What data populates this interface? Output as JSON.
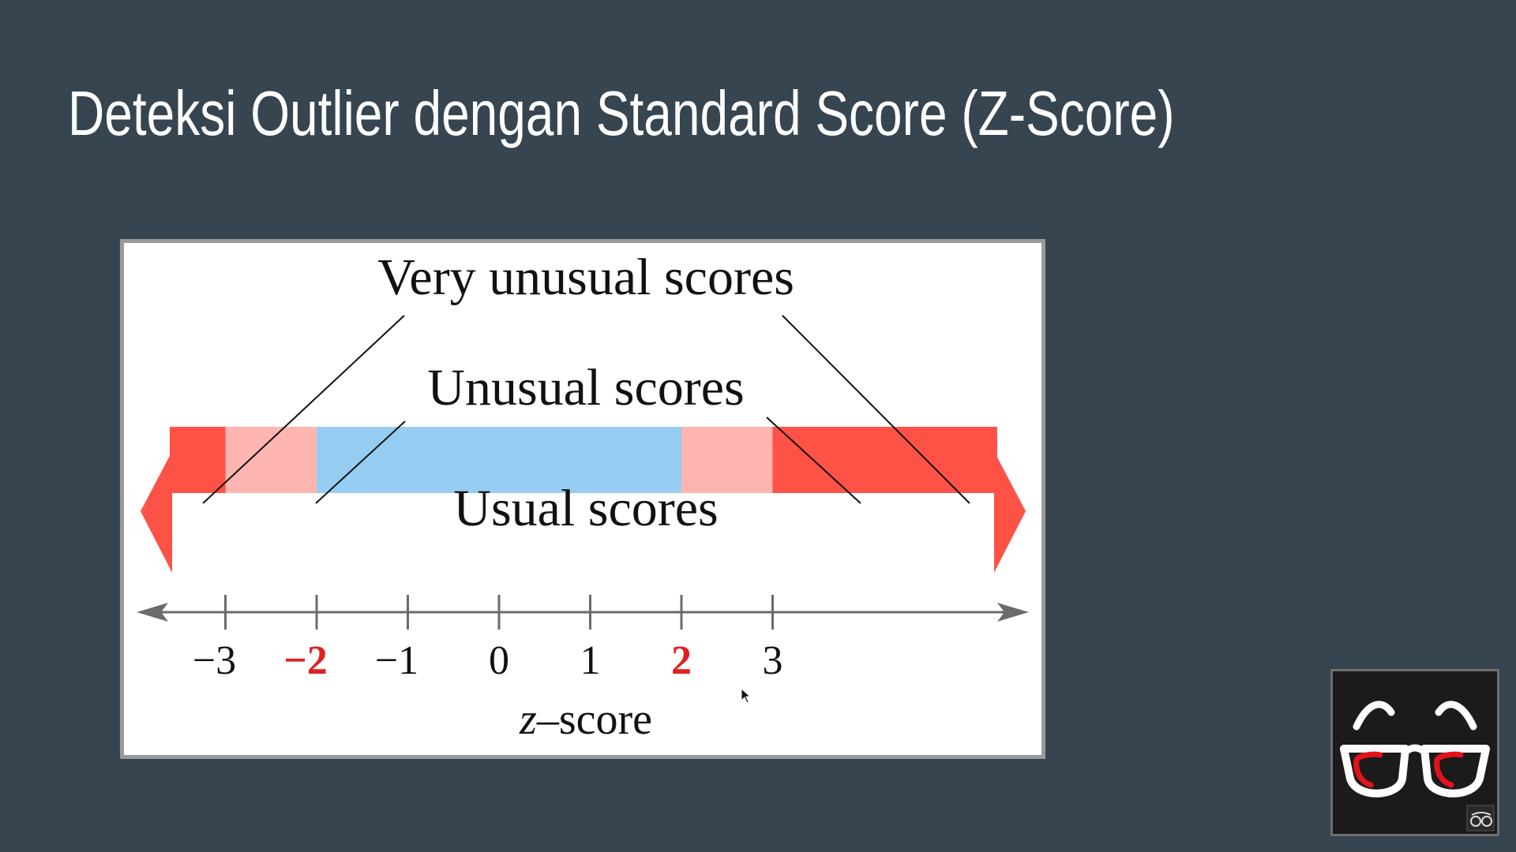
{
  "slide": {
    "title": "Deteksi Outlier dengan Standard Score (Z-Score)"
  },
  "diagram": {
    "labels": {
      "very_unusual": "Very unusual scores",
      "unusual": "Unusual scores",
      "usual": "Usual scores"
    },
    "axis": {
      "title_variable": "z",
      "title_rest": "–score",
      "ticks": [
        {
          "value": -3,
          "label": "−3",
          "highlight": false
        },
        {
          "value": -2,
          "label": "−2",
          "highlight": true
        },
        {
          "value": -1,
          "label": "−1",
          "highlight": false
        },
        {
          "value": 0,
          "label": "0",
          "highlight": false
        },
        {
          "value": 1,
          "label": "1",
          "highlight": false
        },
        {
          "value": 2,
          "label": "2",
          "highlight": true
        },
        {
          "value": 3,
          "label": "3",
          "highlight": false
        }
      ]
    },
    "regions": [
      {
        "name": "very-unusual-left",
        "from": -4,
        "to": -3,
        "color": "#ff5246"
      },
      {
        "name": "unusual-left",
        "from": -3,
        "to": -2,
        "color": "#ffb5b0"
      },
      {
        "name": "usual",
        "from": -2,
        "to": 2,
        "color": "#96cdf2"
      },
      {
        "name": "unusual-right",
        "from": 2,
        "to": 3,
        "color": "#ffb5b0"
      },
      {
        "name": "very-unusual-right",
        "from": 3,
        "to": 4,
        "color": "#ff5246"
      }
    ],
    "colors": {
      "highlight": "#e02020",
      "axis": "#6b6b6b",
      "leader": "#111111"
    }
  },
  "logo": {
    "icon": "glasses-icon",
    "colors": {
      "frame": "#ffffff",
      "lens": "#e3121b",
      "background": "#1b1b1b"
    }
  }
}
